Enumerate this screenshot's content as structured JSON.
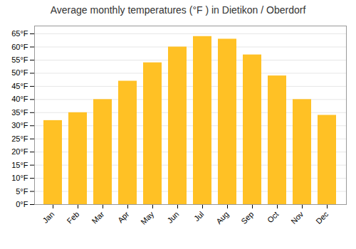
{
  "chart_data": {
    "type": "bar",
    "title": "Average monthly temperatures (°F ) in Dietikon / Oberdorf",
    "categories": [
      "Jan",
      "Feb",
      "Mar",
      "Apr",
      "May",
      "Jun",
      "Jul",
      "Aug",
      "Sep",
      "Oct",
      "Nov",
      "Dec"
    ],
    "values": [
      32,
      35,
      40,
      47,
      54,
      60,
      64,
      63,
      57,
      49,
      40,
      34
    ],
    "color": "#FFC125",
    "ylim": [
      0,
      68
    ],
    "yticks": [
      {
        "value": 0,
        "label": "0°F"
      },
      {
        "value": 5,
        "label": "5°F"
      },
      {
        "value": 10,
        "label": "10°F"
      },
      {
        "value": 15,
        "label": "15°F"
      },
      {
        "value": 20,
        "label": "20°F"
      },
      {
        "value": 25,
        "label": "25°F"
      },
      {
        "value": 30,
        "label": "30°F"
      },
      {
        "value": 35,
        "label": "35°F"
      },
      {
        "value": 40,
        "label": "40°F"
      },
      {
        "value": 45,
        "label": "45°F"
      },
      {
        "value": 50,
        "label": "50°F"
      },
      {
        "value": 55,
        "label": "55°F"
      },
      {
        "value": 60,
        "label": "60°F"
      },
      {
        "value": 65,
        "label": "65°F"
      }
    ],
    "grid": true
  }
}
